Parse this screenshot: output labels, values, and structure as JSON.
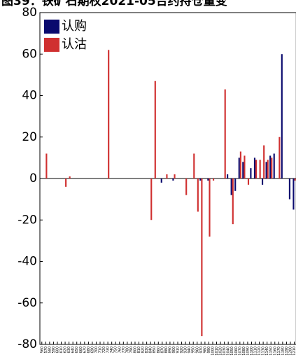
{
  "chart_data": {
    "type": "bar",
    "title": "图39：铁矿石期权2021-05合约持仓量变",
    "categories": [
      "560",
      "570",
      "580",
      "590",
      "600",
      "610",
      "620",
      "630",
      "640",
      "650",
      "660",
      "670",
      "680",
      "690",
      "700",
      "710",
      "720",
      "730",
      "740",
      "750",
      "760",
      "770",
      "780",
      "790",
      "800",
      "810",
      "820",
      "830",
      "840",
      "850",
      "860",
      "870",
      "880",
      "890",
      "900",
      "910",
      "920",
      "930",
      "940",
      "950",
      "960",
      "970",
      "980",
      "990",
      "1000",
      "1010",
      "1020",
      "1030",
      "1040",
      "1050",
      "1060",
      "1070",
      "1080",
      "1090",
      "1100",
      "1110",
      "1120",
      "1130",
      "1140",
      "1150",
      "1160",
      "1170",
      "1180",
      "1190",
      "1200",
      "1210"
    ],
    "series": [
      {
        "name": "认购",
        "color": "#0a0a6e",
        "values": [
          0,
          0,
          0,
          0,
          0,
          0,
          0,
          0,
          0,
          0,
          0,
          0,
          0,
          0,
          0,
          0,
          0,
          0,
          0,
          0,
          0,
          0,
          0,
          0,
          0,
          0,
          0,
          0,
          0,
          0,
          0,
          -2,
          0,
          0,
          -1,
          0,
          0,
          0,
          0,
          0,
          0,
          -1,
          0,
          -1,
          0,
          0,
          0,
          0,
          2,
          -8,
          -6,
          10,
          8,
          0,
          5,
          10,
          0,
          -3,
          8,
          11,
          12,
          0,
          60,
          0,
          -10,
          -15
        ]
      },
      {
        "name": "认沽",
        "color": "#d03030",
        "values": [
          0,
          12,
          0,
          0,
          0,
          0,
          -4,
          1,
          0,
          0,
          0,
          0,
          0,
          0,
          0,
          0,
          0,
          62,
          0,
          0,
          0,
          0,
          0,
          0,
          0,
          0,
          0,
          0,
          -20,
          47,
          0,
          0,
          2,
          0,
          2,
          0,
          0,
          -8,
          0,
          12,
          -16,
          -76,
          0,
          -28,
          -1,
          0,
          0,
          43,
          0,
          -22,
          0,
          13,
          11,
          -3,
          0,
          9,
          9,
          16,
          9,
          10,
          0,
          20,
          0,
          0,
          0,
          -1
        ]
      }
    ],
    "ylim": [
      -80,
      80
    ],
    "yticks": [
      -80,
      -60,
      -40,
      -20,
      0,
      20,
      40,
      60,
      80
    ]
  }
}
